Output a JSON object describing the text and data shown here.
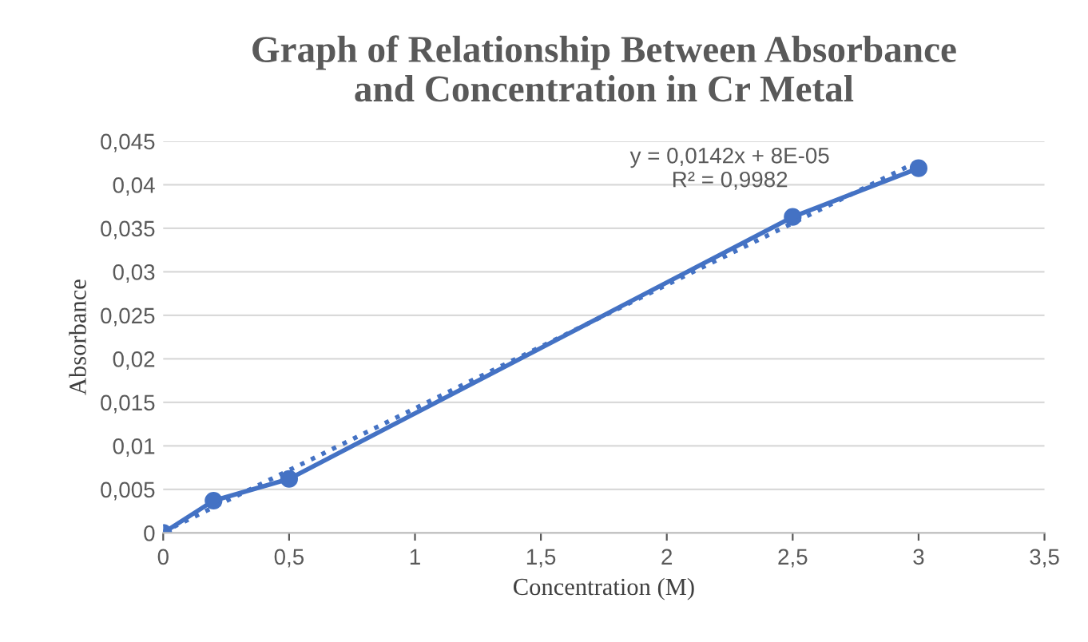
{
  "chart_data": {
    "type": "line",
    "title": "Graph of Relationship Between Absorbance\nand Concentration in Cr Metal",
    "xlabel": "Concentration (M)",
    "ylabel": "Absorbance",
    "series": [
      {
        "color": "#4472c4",
        "marker": "circle",
        "line_style": "solid",
        "x": [
          0,
          0.2,
          0.5,
          2.5,
          3
        ],
        "values": [
          0,
          0.0037,
          0.0062,
          0.0363,
          0.0419
        ]
      },
      {
        "color": "#4472c4",
        "marker": "none",
        "line_style": "dotted",
        "x": [
          0,
          3
        ],
        "values": [
          0.0001,
          0.0427
        ]
      }
    ],
    "annotations": [
      "y = 0,0142x + 8E-05\nR² = 0,9982"
    ],
    "xlim": [
      0,
      3.5
    ],
    "ylim": [
      0,
      0.045
    ],
    "xticks": [
      0,
      {
        "value": 0.5,
        "label": "0,5"
      },
      1,
      {
        "value": 1.5,
        "label": "1,5"
      },
      2,
      {
        "value": 2.5,
        "label": "2,5"
      },
      3,
      {
        "value": 3.5,
        "label": "3,5"
      }
    ],
    "yticks": [
      0,
      {
        "value": 0.005,
        "label": "0,005"
      },
      {
        "value": 0.01,
        "label": "0,01"
      },
      {
        "value": 0.015,
        "label": "0,015"
      },
      {
        "value": 0.02,
        "label": "0,02"
      },
      {
        "value": 0.025,
        "label": "0,025"
      },
      {
        "value": 0.03,
        "label": "0,03"
      },
      {
        "value": 0.035,
        "label": "0,035"
      },
      {
        "value": 0.04,
        "label": "0,04"
      },
      {
        "value": 0.045,
        "label": "0,045"
      }
    ],
    "grid": "y"
  }
}
